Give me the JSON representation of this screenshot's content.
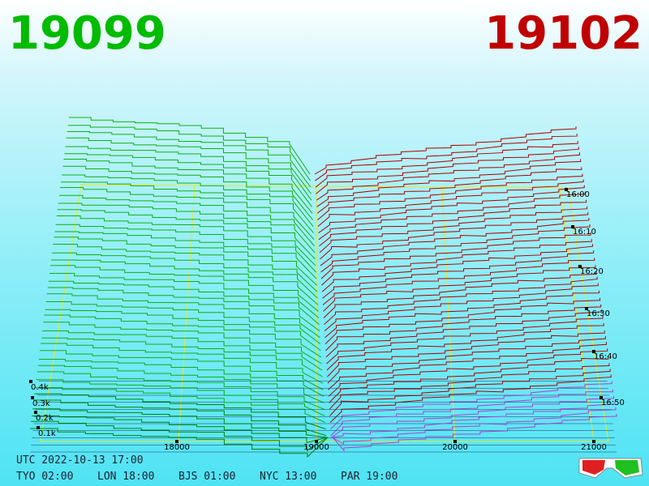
{
  "header": {
    "bid": "19099",
    "ask": "19102"
  },
  "price_axis": {
    "ticks": [
      "18000",
      "19000",
      "20000",
      "21000"
    ]
  },
  "depth_axis": {
    "ticks": [
      "0.1k",
      "0.2k",
      "0.3k",
      "0.4k"
    ]
  },
  "time_axis": {
    "ticks": [
      "16:00",
      "16:10",
      "16:20",
      "16:30",
      "16:40",
      "16:50"
    ]
  },
  "footer": {
    "utc": "UTC 2022-10-13 17:00",
    "zones": [
      "TYO 02:00",
      "LON 18:00",
      "BJS 01:00",
      "NYC 13:00",
      "PAR 19:00"
    ]
  }
}
